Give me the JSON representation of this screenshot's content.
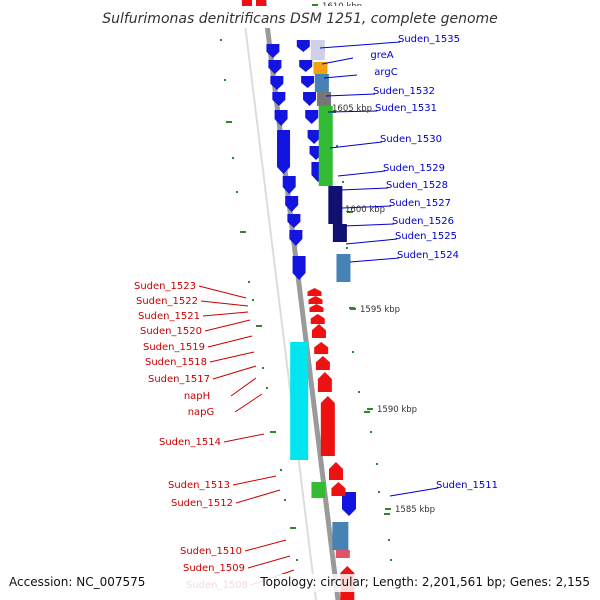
{
  "title": "Sulfurimonas denitrificans DSM 1251, complete genome",
  "footer": {
    "accession": "Accession: NC_007575",
    "summary": "Topology: circular; Length: 2,201,561 bp; Genes: 2,155"
  },
  "colors": {
    "background": "#ffffff",
    "backbone": "#9a9a9a",
    "forward_gene": "#1414e0",
    "reverse_gene": "#ee1111",
    "forward_label": "#0000cc",
    "reverse_label": "#cc0000",
    "gc_tick": "#2a8a2a",
    "cds_steelblue": "#4682b4",
    "cds_cyan": "#00e5ee",
    "cds_green": "#33bb33",
    "cds_orange": "#f5a010",
    "cds_gray": "#777777",
    "cds_navy": "#101070"
  },
  "scale_labels": [
    "1610 kbp",
    "1605 kbp",
    "1600 kbp",
    "1595 kbp",
    "1590 kbp",
    "1585 kbp"
  ],
  "forward_labels": [
    "Suden_1535",
    "greA",
    "argC",
    "Suden_1532",
    "Suden_1531",
    "Suden_1530",
    "Suden_1529",
    "Suden_1528",
    "Suden_1527",
    "Suden_1526",
    "Suden_1525",
    "Suden_1524",
    "Suden_1511"
  ],
  "reverse_labels": [
    "Suden_1523",
    "Suden_1522",
    "Suden_1521",
    "Suden_1520",
    "Suden_1519",
    "Suden_1518",
    "Suden_1517",
    "napH",
    "napG",
    "Suden_1514",
    "Suden_1513",
    "Suden_1512",
    "Suden_1510",
    "Suden_1509",
    "Suden_1508"
  ]
}
